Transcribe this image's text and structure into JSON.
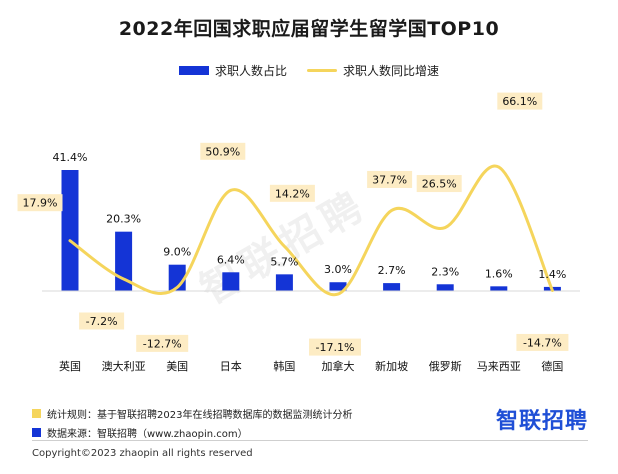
{
  "title": "2022年回国求职应届留学生留学国TOP10",
  "legend": {
    "bar_label": "求职人数占比",
    "line_label": "求职人数同比增速"
  },
  "watermark": "智联招聘",
  "footer": {
    "rule": "统计规则：基于智联招聘2023年在线招聘数据库的数据监测统计分析",
    "source": "数据来源：智联招聘（www.zhaopin.com）",
    "brand": "智联招聘",
    "copyright": "Copyright©2023 zhaopin all rights reserved"
  },
  "colors": {
    "bar": "#1434d6",
    "line": "#f5d55c",
    "label_bg": "#fdecc4"
  },
  "chart_data": {
    "type": "bar",
    "categories": [
      "英国",
      "澳大利亚",
      "美国",
      "日本",
      "韩国",
      "加拿大",
      "新加坡",
      "俄罗斯",
      "马来西亚",
      "德国"
    ],
    "series": [
      {
        "name": "求职人数占比",
        "type": "bar",
        "unit": "%",
        "values": [
          41.4,
          20.3,
          9.0,
          6.4,
          5.7,
          3.0,
          2.7,
          2.3,
          1.6,
          1.4
        ]
      },
      {
        "name": "求职人数同比增速",
        "type": "line",
        "unit": "%",
        "values": [
          17.9,
          -7.2,
          -12.7,
          50.9,
          14.2,
          -17.1,
          37.7,
          26.5,
          66.1,
          -14.7
        ]
      }
    ]
  }
}
